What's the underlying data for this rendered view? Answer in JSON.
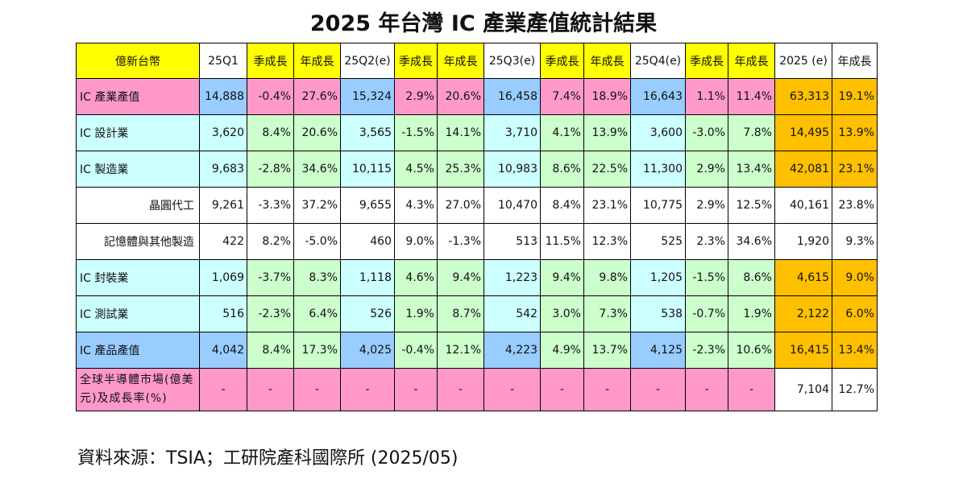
{
  "title": "2025 年台灣 IC 產業產值統計結果",
  "source": "資料來源：TSIA；工研院產科國際所  (2025/05)",
  "colors": {
    "header_yellow": "#ffff00",
    "header_white": "#ffffff",
    "total_label": "#ff99cc",
    "sector_label": "#ccffff",
    "value_blue": "#99ccff",
    "growth_green": "#ccffcc",
    "annual_orange": "#ffc000",
    "market_pink": "#ff99cc"
  },
  "table": {
    "headers": [
      "億新台幣",
      "25Q1",
      "季成長",
      "年成長",
      "25Q2(e)",
      "季成長",
      "年成長",
      "25Q3(e)",
      "季成長",
      "年成長",
      "25Q4(e)",
      "季成長",
      "年成長",
      "2025 (e)",
      "年成長"
    ],
    "rows": [
      {
        "type": "total",
        "cells": [
          "IC 產業產值",
          "14,888",
          "-0.4%",
          "27.6%",
          "15,324",
          "2.9%",
          "20.6%",
          "16,458",
          "7.4%",
          "18.9%",
          "16,643",
          "1.1%",
          "11.4%",
          "63,313",
          "19.1%"
        ]
      },
      {
        "type": "sector",
        "cells": [
          "IC 設計業",
          "3,620",
          "8.4%",
          "20.6%",
          "3,565",
          "-1.5%",
          "14.1%",
          "3,710",
          "4.1%",
          "13.9%",
          "3,600",
          "-3.0%",
          "7.8%",
          "14,495",
          "13.9%"
        ]
      },
      {
        "type": "sector",
        "cells": [
          "IC 製造業",
          "9,683",
          "-2.8%",
          "34.6%",
          "10,115",
          "4.5%",
          "25.3%",
          "10,983",
          "8.6%",
          "22.5%",
          "11,300",
          "2.9%",
          "13.4%",
          "42,081",
          "23.1%"
        ]
      },
      {
        "type": "sub",
        "cells": [
          "晶圓代工",
          "9,261",
          "-3.3%",
          "37.2%",
          "9,655",
          "4.3%",
          "27.0%",
          "10,470",
          "8.4%",
          "23.1%",
          "10,775",
          "2.9%",
          "12.5%",
          "40,161",
          "23.8%"
        ]
      },
      {
        "type": "sub",
        "cells": [
          "記憶體與其他製造",
          "422",
          "8.2%",
          "-5.0%",
          "460",
          "9.0%",
          "-1.3%",
          "513",
          "11.5%",
          "12.3%",
          "525",
          "2.3%",
          "34.6%",
          "1,920",
          "9.3%"
        ]
      },
      {
        "type": "sector",
        "cells": [
          "IC 封裝業",
          "1,069",
          "-3.7%",
          "8.3%",
          "1,118",
          "4.6%",
          "9.4%",
          "1,223",
          "9.4%",
          "9.8%",
          "1,205",
          "-1.5%",
          "8.6%",
          "4,615",
          "9.0%"
        ]
      },
      {
        "type": "sector",
        "cells": [
          "IC 測試業",
          "516",
          "-2.3%",
          "6.4%",
          "526",
          "1.9%",
          "8.7%",
          "542",
          "3.0%",
          "7.3%",
          "538",
          "-0.7%",
          "1.9%",
          "2,122",
          "6.0%"
        ]
      },
      {
        "type": "product",
        "cells": [
          "IC 產品產值",
          "4,042",
          "8.4%",
          "17.3%",
          "4,025",
          "-0.4%",
          "12.1%",
          "4,223",
          "4.9%",
          "13.7%",
          "4,125",
          "-2.3%",
          "10.6%",
          "16,415",
          "13.4%"
        ]
      },
      {
        "type": "market",
        "cells": [
          "全球半導體市場(億美元)及成長率(%)",
          "-",
          "-",
          "-",
          "-",
          "-",
          "-",
          "-",
          "-",
          "-",
          "-",
          "-",
          "-",
          "7,104",
          "12.7%"
        ]
      }
    ]
  }
}
